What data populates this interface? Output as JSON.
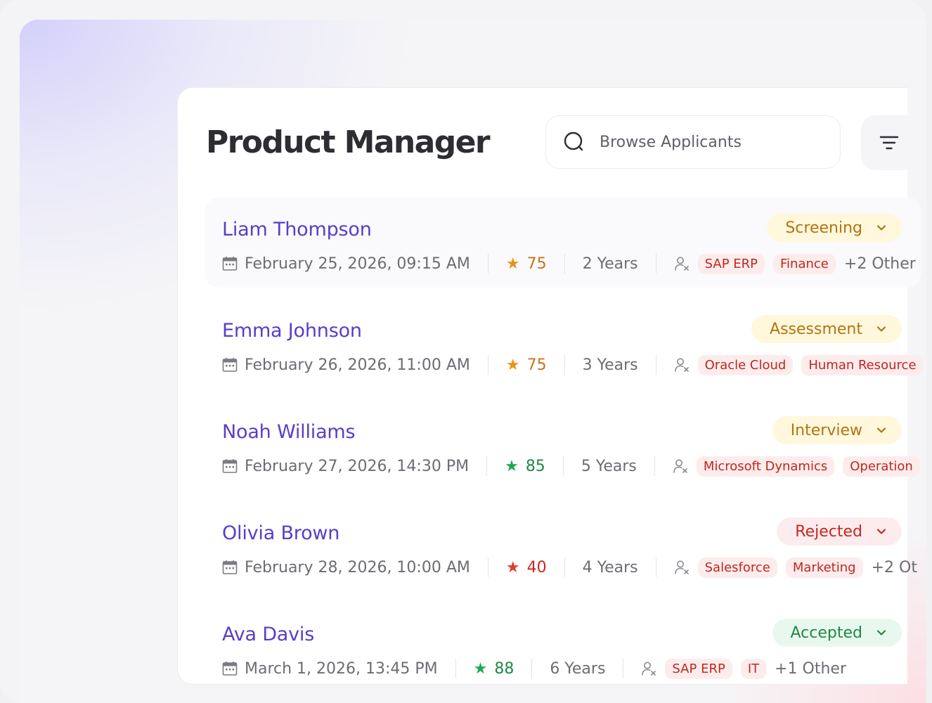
{
  "page": {
    "title": "Product Manager",
    "search_placeholder": "Browse Applicants"
  },
  "applicants": [
    {
      "name": "Liam Thompson",
      "date": "February 25, 2026, 09:15 AM",
      "score": "75",
      "score_color": "#e79314",
      "score_text_color": "#c8741c",
      "experience": "2 Years",
      "tags": [
        "SAP ERP",
        "Finance"
      ],
      "others": "+2 Other",
      "status": "Screening",
      "status_bg": "#fff8dd",
      "status_color": "#b47310"
    },
    {
      "name": "Emma Johnson",
      "date": "February 26, 2026, 11:00 AM",
      "score": "75",
      "score_color": "#e79314",
      "score_text_color": "#c8741c",
      "experience": "3 Years",
      "tags": [
        "Oracle Cloud",
        "Human Resource"
      ],
      "others": "",
      "status": "Assessment",
      "status_bg": "#fff8dd",
      "status_color": "#b47310"
    },
    {
      "name": "Noah Williams",
      "date": "February 27, 2026, 14:30 PM",
      "score": "85",
      "score_color": "#1fa94e",
      "score_text_color": "#1e8a46",
      "experience": "5 Years",
      "tags": [
        "Microsoft Dynamics",
        "Operation"
      ],
      "others": "",
      "status": "Interview",
      "status_bg": "#fff8dd",
      "status_color": "#b47310"
    },
    {
      "name": "Olivia Brown",
      "date": "February 28, 2026, 10:00 AM",
      "score": "40",
      "score_color": "#e23a2f",
      "score_text_color": "#c9261f",
      "experience": "4 Years",
      "tags": [
        "Salesforce",
        "Marketing"
      ],
      "others": "+2 Ot",
      "status": "Rejected",
      "status_bg": "#fdecee",
      "status_color": "#c8271f"
    },
    {
      "name": "Ava Davis",
      "date": "March 1, 2026, 13:45 PM",
      "score": "88",
      "score_color": "#1fa94e",
      "score_text_color": "#1e8a46",
      "experience": "6 Years",
      "tags": [
        "SAP ERP",
        "IT"
      ],
      "others": "+1 Other",
      "status": "Accepted",
      "status_bg": "#e9f8ee",
      "status_color": "#1d8a43"
    }
  ],
  "icons": {
    "search": "search-icon",
    "filter": "filter-icon",
    "calendar": "calendar-icon",
    "star": "star-icon",
    "person": "person-x-icon",
    "chevron": "chevron-down-icon"
  }
}
